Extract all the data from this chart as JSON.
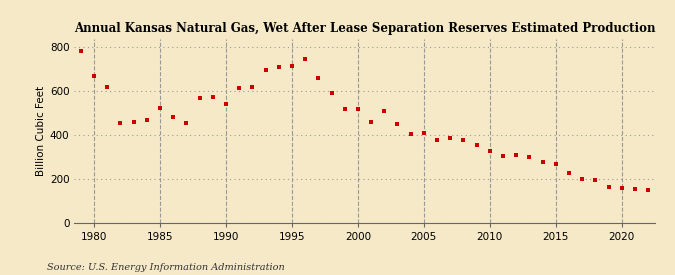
{
  "title": "Annual Kansas Natural Gas, Wet After Lease Separation Reserves Estimated Production",
  "ylabel": "Billion Cubic Feet",
  "source": "Source: U.S. Energy Information Administration",
  "background_color": "#f5e9c8",
  "plot_background_color": "#f5e9c8",
  "marker_color": "#cc0000",
  "xlim": [
    1978.5,
    2022.5
  ],
  "ylim": [
    0,
    840
  ],
  "yticks": [
    0,
    200,
    400,
    600,
    800
  ],
  "xticks": [
    1980,
    1985,
    1990,
    1995,
    2000,
    2005,
    2010,
    2015,
    2020
  ],
  "years": [
    1979,
    1980,
    1981,
    1982,
    1983,
    1984,
    1985,
    1986,
    1987,
    1988,
    1989,
    1990,
    1991,
    1992,
    1993,
    1994,
    1995,
    1996,
    1997,
    1998,
    1999,
    2000,
    2001,
    2002,
    2003,
    2004,
    2005,
    2006,
    2007,
    2008,
    2009,
    2010,
    2011,
    2012,
    2013,
    2014,
    2015,
    2016,
    2017,
    2018,
    2019,
    2020,
    2021,
    2022
  ],
  "values": [
    785,
    668,
    620,
    455,
    460,
    470,
    525,
    480,
    455,
    568,
    572,
    540,
    615,
    620,
    695,
    710,
    715,
    748,
    658,
    590,
    520,
    520,
    460,
    510,
    450,
    405,
    408,
    375,
    385,
    375,
    355,
    325,
    305,
    310,
    300,
    275,
    270,
    225,
    200,
    195,
    165,
    160,
    155,
    148
  ]
}
